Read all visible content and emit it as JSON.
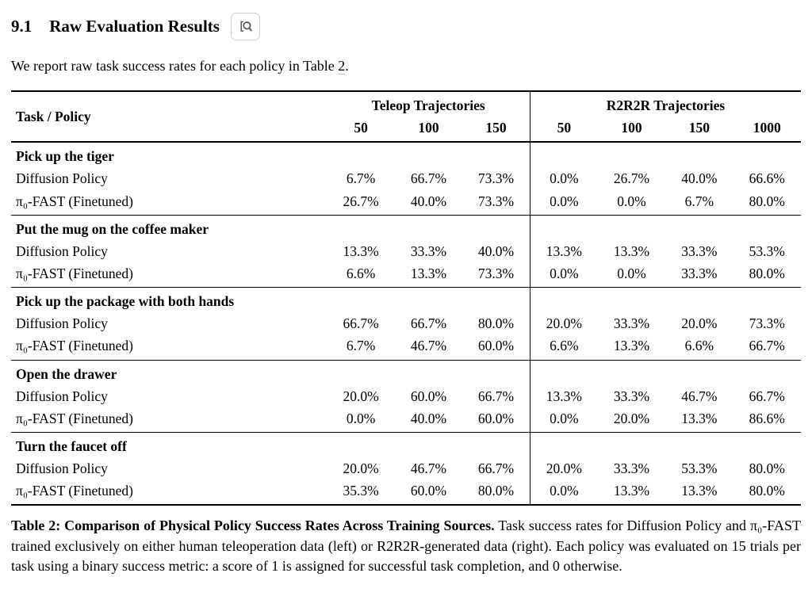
{
  "section": {
    "number": "9.1",
    "title": "Raw Evaluation Results",
    "intro_prefix": "We report raw task success rates for each policy in Table ",
    "intro_link": "2",
    "intro_suffix": "."
  },
  "icons": {
    "section_zoom": "magnifier"
  },
  "table": {
    "corner_header": "Task / Policy",
    "groups_header": [
      {
        "label": "Teleop Trajectories",
        "cols": [
          "50",
          "100",
          "150"
        ]
      },
      {
        "label": "R2R2R Trajectories",
        "cols": [
          "50",
          "100",
          "150",
          "1000"
        ]
      }
    ],
    "task_groups": [
      {
        "task": "Pick up the tiger",
        "rows": [
          {
            "policy": "Diffusion Policy",
            "teleop": [
              "6.7%",
              "66.7%",
              "73.3%"
            ],
            "r2r2r": [
              "0.0%",
              "26.7%",
              "40.0%",
              "66.6%"
            ]
          },
          {
            "policy": "π₀-FAST (Finetuned)",
            "teleop": [
              "26.7%",
              "40.0%",
              "73.3%"
            ],
            "r2r2r": [
              "0.0%",
              "0.0%",
              "6.7%",
              "80.0%"
            ]
          }
        ]
      },
      {
        "task": "Put the mug on the coffee maker",
        "rows": [
          {
            "policy": "Diffusion Policy",
            "teleop": [
              "13.3%",
              "33.3%",
              "40.0%"
            ],
            "r2r2r": [
              "13.3%",
              "13.3%",
              "33.3%",
              "53.3%"
            ]
          },
          {
            "policy": "π₀-FAST (Finetuned)",
            "teleop": [
              "6.6%",
              "13.3%",
              "73.3%"
            ],
            "r2r2r": [
              "0.0%",
              "0.0%",
              "33.3%",
              "80.0%"
            ]
          }
        ]
      },
      {
        "task": "Pick up the package with both hands",
        "rows": [
          {
            "policy": "Diffusion Policy",
            "teleop": [
              "66.7%",
              "66.7%",
              "80.0%"
            ],
            "r2r2r": [
              "20.0%",
              "33.3%",
              "20.0%",
              "73.3%"
            ]
          },
          {
            "policy": "π₀-FAST (Finetuned)",
            "teleop": [
              "6.7%",
              "46.7%",
              "60.0%"
            ],
            "r2r2r": [
              "6.6%",
              "13.3%",
              "6.6%",
              "66.7%"
            ]
          }
        ]
      },
      {
        "task": "Open the drawer",
        "rows": [
          {
            "policy": "Diffusion Policy",
            "teleop": [
              "20.0%",
              "60.0%",
              "66.7%"
            ],
            "r2r2r": [
              "13.3%",
              "33.3%",
              "46.7%",
              "66.7%"
            ]
          },
          {
            "policy": "π₀-FAST (Finetuned)",
            "teleop": [
              "0.0%",
              "40.0%",
              "60.0%"
            ],
            "r2r2r": [
              "0.0%",
              "20.0%",
              "13.3%",
              "86.6%"
            ]
          }
        ]
      },
      {
        "task": "Turn the faucet off",
        "rows": [
          {
            "policy": "Diffusion Policy",
            "teleop": [
              "20.0%",
              "46.7%",
              "66.7%"
            ],
            "r2r2r": [
              "20.0%",
              "33.3%",
              "53.3%",
              "80.0%"
            ]
          },
          {
            "policy": "π₀-FAST (Finetuned)",
            "teleop": [
              "35.3%",
              "60.0%",
              "80.0%"
            ],
            "r2r2r": [
              "0.0%",
              "13.3%",
              "13.3%",
              "80.0%"
            ]
          }
        ]
      }
    ]
  },
  "caption": {
    "bold": "Table 2: Comparison of Physical Policy Success Rates Across Training Sources.",
    "text": " Task success rates for Diffusion Policy and π₀-FAST trained exclusively on either human teleoperation data (left) or R2R2R-generated data (right). Each policy was evaluated on 15 trials per task using a binary success metric: a score of 1 is assigned for successful task completion, and 0 otherwise."
  }
}
